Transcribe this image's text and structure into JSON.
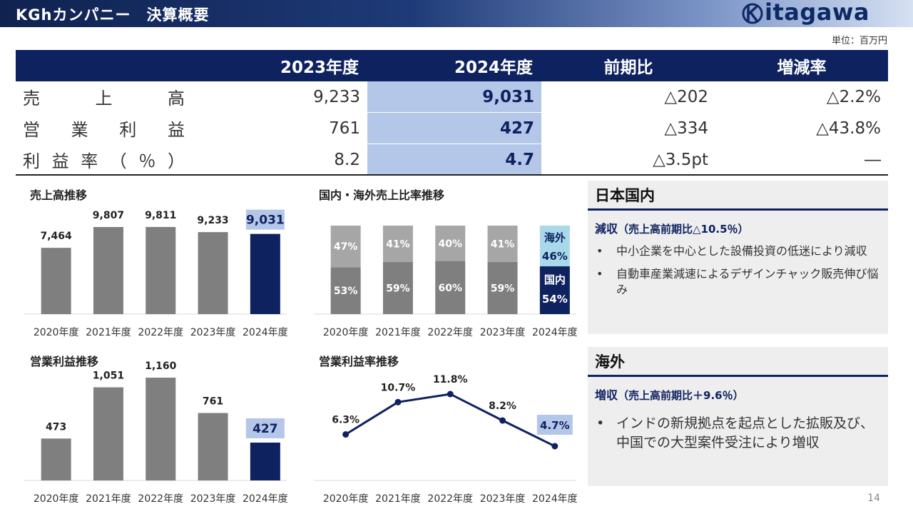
{
  "header": {
    "title": "KGhカンパニー　決算概要",
    "logo_text": "itagawa"
  },
  "unit": "単位：百万円",
  "table": {
    "headers": [
      "2023年度",
      "2024年度",
      "前期比",
      "増減率"
    ],
    "rows": [
      {
        "label_parts": [
          "売",
          "上",
          "高"
        ],
        "v2023": "9,233",
        "v2024": "9,031",
        "diff": "△202",
        "rate": "△2.2%"
      },
      {
        "label_parts": [
          "営",
          "業",
          "利",
          "益"
        ],
        "v2023": "761",
        "v2024": "427",
        "diff": "△334",
        "rate": "△43.8%"
      },
      {
        "label_parts": [
          "利",
          "益",
          "率",
          "（",
          "％",
          "）"
        ],
        "v2023": "8.2",
        "v2024": "4.7",
        "diff": "△3.5pt",
        "rate": "―"
      }
    ]
  },
  "chart_data": [
    {
      "type": "bar",
      "title": "売上高推移",
      "categories": [
        "2020年度",
        "2021年度",
        "2022年度",
        "2023年度",
        "2024年度"
      ],
      "values": [
        7464,
        9807,
        9811,
        9233,
        9031
      ],
      "value_labels": [
        "7,464",
        "9,807",
        "9,811",
        "9,233",
        "9,031"
      ],
      "highlight_index": 4
    },
    {
      "type": "bar",
      "title": "国内・海外売上比率推移",
      "stacked": true,
      "categories": [
        "2020年度",
        "2021年度",
        "2022年度",
        "2023年度",
        "2024年度"
      ],
      "series": [
        {
          "name": "国内",
          "values": [
            53,
            59,
            60,
            59,
            54
          ]
        },
        {
          "name": "海外",
          "values": [
            47,
            41,
            40,
            41,
            46
          ]
        }
      ],
      "unit": "%"
    },
    {
      "type": "bar",
      "title": "営業利益推移",
      "categories": [
        "2020年度",
        "2021年度",
        "2022年度",
        "2023年度",
        "2024年度"
      ],
      "values": [
        473,
        1051,
        1160,
        761,
        427
      ],
      "value_labels": [
        "473",
        "1,051",
        "1,160",
        "761",
        "427"
      ],
      "highlight_index": 4
    },
    {
      "type": "line",
      "title": "営業利益率推移",
      "categories": [
        "2020年度",
        "2021年度",
        "2022年度",
        "2023年度",
        "2024年度"
      ],
      "values": [
        6.3,
        10.7,
        11.8,
        8.2,
        4.7
      ],
      "value_labels": [
        "6.3%",
        "10.7%",
        "11.8%",
        "8.2%",
        "4.7%"
      ],
      "highlight_index": 4
    }
  ],
  "panels": {
    "domestic": {
      "title": "日本国内",
      "sub_main": "減収",
      "sub_detail": "（売上高前期比△10.5％）",
      "bullets": [
        "中小企業を中心とした設備投資の低迷により減収",
        "自動車産業減速によるデザインチャック販売伸び悩み"
      ]
    },
    "overseas": {
      "title": "海外",
      "sub_main": "増収",
      "sub_detail": "（売上高前期比＋9.6％）",
      "bullets": [
        "インドの新規拠点を起点とした拡販及び、中国での大型案件受注により増収"
      ]
    }
  },
  "colors": {
    "navy": "#0f2260",
    "gray_bar": "#7f7f7f",
    "light_gray_bar": "#a6a6a6",
    "highlight": "#b5c7e9",
    "overseas_2024": "#a9d8ea"
  },
  "page_number": "14"
}
